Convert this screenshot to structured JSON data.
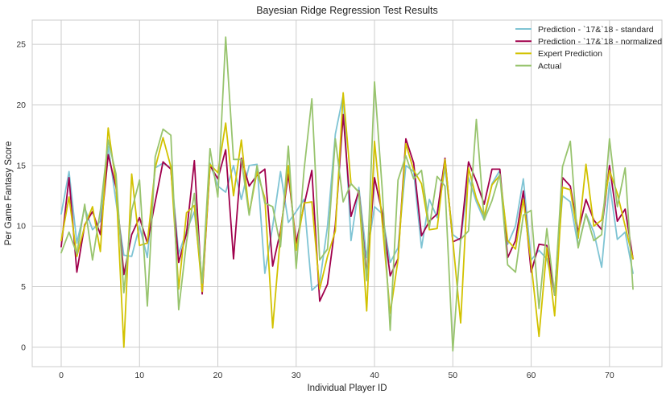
{
  "chart_data": {
    "type": "line",
    "title": "Bayesian Ridge Regression Test Results",
    "xlabel": "Individual Player ID",
    "ylabel": "Per Game Fantasy Score",
    "xlim": [
      -3.7,
      76.7
    ],
    "ylim": [
      -1.6,
      27.0
    ],
    "xticks": [
      0,
      10,
      20,
      30,
      40,
      50,
      60,
      70
    ],
    "yticks": [
      0,
      5,
      10,
      15,
      20,
      25
    ],
    "grid": true,
    "legend_position": "top-right",
    "x": [
      0,
      1,
      2,
      3,
      4,
      5,
      6,
      7,
      8,
      9,
      10,
      11,
      12,
      13,
      14,
      15,
      16,
      17,
      18,
      19,
      20,
      21,
      22,
      23,
      24,
      25,
      26,
      27,
      28,
      29,
      30,
      31,
      32,
      33,
      34,
      35,
      36,
      37,
      38,
      39,
      40,
      41,
      42,
      43,
      44,
      45,
      46,
      47,
      48,
      49,
      50,
      51,
      52,
      53,
      54,
      55,
      56,
      57,
      58,
      59,
      60,
      61,
      62,
      63,
      64,
      65,
      66,
      67,
      68,
      69,
      70,
      71,
      72,
      73
    ],
    "series": [
      {
        "name": "Prediction - `17&`18 - standard",
        "color": "#7fc4d4",
        "values": [
          11.0,
          14.5,
          8.6,
          11.5,
          9.7,
          10.4,
          16.6,
          12.0,
          7.6,
          7.5,
          10.0,
          7.4,
          14.8,
          15.2,
          14.8,
          7.7,
          9.6,
          11.2,
          5.3,
          15.2,
          13.3,
          12.8,
          15.0,
          12.2,
          15.0,
          15.1,
          6.1,
          10.0,
          14.5,
          10.3,
          11.2,
          12.2,
          4.7,
          5.3,
          10.0,
          17.6,
          20.8,
          8.8,
          13.2,
          7.4,
          11.6,
          11.0,
          7.0,
          8.2,
          15.0,
          14.5,
          8.2,
          12.2,
          10.7,
          14.8,
          9.3,
          8.8,
          14.0,
          12.0,
          10.5,
          13.5,
          14.6,
          8.5,
          10.0,
          13.9,
          7.2,
          8.0,
          7.3,
          4.5,
          12.5,
          12.0,
          8.3,
          11.0,
          9.5,
          6.6,
          13.6,
          8.9,
          9.5,
          6.1
        ]
      },
      {
        "name": "Prediction - `17&`18 - normalized",
        "color": "#a0004c",
        "values": [
          8.3,
          14.0,
          6.2,
          10.1,
          11.2,
          9.3,
          15.9,
          13.2,
          6.0,
          9.3,
          10.7,
          8.6,
          12.0,
          15.3,
          14.7,
          7.0,
          9.4,
          15.4,
          4.4,
          15.0,
          13.9,
          16.3,
          7.3,
          15.6,
          13.3,
          14.2,
          14.7,
          6.7,
          9.6,
          14.3,
          8.6,
          11.7,
          14.6,
          3.8,
          5.2,
          10.1,
          19.2,
          10.8,
          12.9,
          6.0,
          14.0,
          11.0,
          5.9,
          7.3,
          17.2,
          15.2,
          9.2,
          10.4,
          11.0,
          15.6,
          8.7,
          9.0,
          15.3,
          13.7,
          11.8,
          14.7,
          14.7,
          7.4,
          8.8,
          12.9,
          6.2,
          8.5,
          8.4,
          4.3,
          14.0,
          13.3,
          9.5,
          12.2,
          10.5,
          9.7,
          15.0,
          10.4,
          11.4,
          7.3
        ]
      },
      {
        "name": "Expert Prediction",
        "color": "#d2c200",
        "values": [
          8.8,
          12.4,
          7.5,
          10.0,
          11.6,
          7.9,
          18.1,
          13.5,
          0.0,
          14.3,
          8.4,
          8.6,
          14.8,
          17.3,
          14.9,
          4.8,
          11.1,
          11.7,
          4.6,
          15.1,
          14.4,
          18.5,
          12.5,
          17.1,
          11.0,
          14.5,
          12.3,
          1.6,
          9.3,
          15.0,
          8.0,
          11.9,
          12.0,
          4.8,
          7.5,
          9.6,
          21.0,
          13.5,
          12.8,
          3.0,
          17.0,
          10.2,
          2.8,
          7.2,
          16.8,
          14.6,
          13.5,
          9.7,
          9.8,
          15.5,
          8.8,
          2.0,
          14.8,
          12.3,
          10.8,
          13.4,
          14.2,
          8.8,
          8.1,
          12.2,
          6.9,
          0.9,
          8.2,
          2.6,
          13.2,
          13.0,
          9.0,
          15.1,
          10.0,
          10.5,
          14.6,
          12.7,
          10.0,
          7.3
        ]
      },
      {
        "name": "Actual",
        "color": "#98c46e",
        "values": [
          7.8,
          9.5,
          7.7,
          11.8,
          7.2,
          11.3,
          17.1,
          14.3,
          4.5,
          11.3,
          13.8,
          3.4,
          15.7,
          18.0,
          17.5,
          3.1,
          8.7,
          12.7,
          5.3,
          16.4,
          12.4,
          25.6,
          15.5,
          15.5,
          10.9,
          15.0,
          11.9,
          11.6,
          8.3,
          16.6,
          6.5,
          14.6,
          20.5,
          7.2,
          8.1,
          17.2,
          12.0,
          13.5,
          12.8,
          5.5,
          21.9,
          12.9,
          1.4,
          13.8,
          15.8,
          13.9,
          14.6,
          9.9,
          14.1,
          13.3,
          -0.3,
          8.9,
          9.6,
          18.8,
          10.5,
          12.1,
          14.3,
          6.8,
          6.2,
          10.9,
          11.3,
          3.2,
          9.8,
          4.3,
          14.9,
          17.0,
          8.2,
          11.0,
          8.8,
          9.3,
          17.2,
          11.6,
          14.8,
          4.8
        ]
      }
    ]
  }
}
